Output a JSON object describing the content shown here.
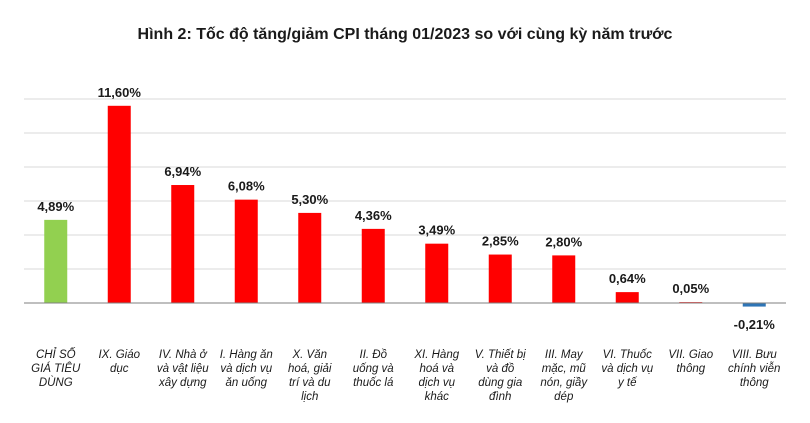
{
  "chart_data": {
    "type": "bar",
    "title": "Hình 2: Tốc độ tăng/giảm CPI tháng 01/2023 so với cùng kỳ năm trước",
    "xlabel": "",
    "ylabel": "",
    "ylim": [
      -2,
      12
    ],
    "grid": true,
    "legend": "none",
    "categories": [
      [
        "CHỈ SỐ",
        "GIÁ TIÊU",
        "DÙNG"
      ],
      [
        "IX. Giáo",
        "dục"
      ],
      [
        "IV. Nhà ở",
        "và vật liệu",
        "xây dựng"
      ],
      [
        "I. Hàng ăn",
        "và dịch vụ",
        "ăn uống"
      ],
      [
        "X. Văn",
        "hoá, giải",
        "trí và du",
        "lịch"
      ],
      [
        "II. Đồ",
        "uống và",
        "thuốc lá"
      ],
      [
        "XI. Hàng",
        "hoá và",
        "dịch vụ",
        "khác"
      ],
      [
        "V. Thiết bị",
        "và đồ",
        "dùng gia",
        "đình"
      ],
      [
        "III. May",
        "mặc, mũ",
        "nón, giầy",
        "dép"
      ],
      [
        "VI. Thuốc",
        "và dịch vụ",
        "y tế"
      ],
      [
        "VII. Giao",
        "thông"
      ],
      [
        "VIII. Bưu",
        "chính viễn",
        "thông"
      ]
    ],
    "values": [
      4.89,
      11.6,
      6.94,
      6.08,
      5.3,
      4.36,
      3.49,
      2.85,
      2.8,
      0.64,
      0.05,
      -0.21
    ],
    "value_labels": [
      "4,89%",
      "11,60%",
      "6,94%",
      "6,08%",
      "5,30%",
      "4,36%",
      "3,49%",
      "2,85%",
      "2,80%",
      "0,64%",
      "0,05%",
      "-0,21%"
    ],
    "colors": {
      "total": "#92d050",
      "positive": "#ff0000",
      "negative": "#2e75b6",
      "grid": "#d9d9d9",
      "axis": "#7f7f7f"
    }
  }
}
